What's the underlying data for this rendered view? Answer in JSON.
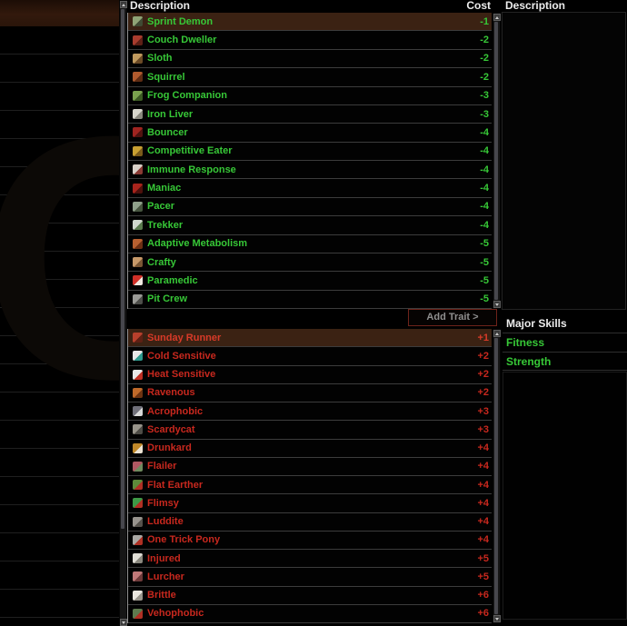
{
  "header": {
    "traits_column_title": "Description",
    "cost_column_title": "Cost",
    "description_panel_title": "Description"
  },
  "add_trait": {
    "label": "Add Trait >"
  },
  "positive_traits": [
    {
      "name": "Sprint Demon",
      "cost": "-1",
      "selected": true,
      "icon": "sprint-demon",
      "icon_colors": [
        "#8fa476",
        "#3f4a33"
      ]
    },
    {
      "name": "Couch Dweller",
      "cost": "-2",
      "selected": false,
      "icon": "couch-dweller",
      "icon_colors": [
        "#a83c2e",
        "#5e1f16"
      ]
    },
    {
      "name": "Sloth",
      "cost": "-2",
      "selected": false,
      "icon": "sloth",
      "icon_colors": [
        "#c09a5e",
        "#6b4a26"
      ]
    },
    {
      "name": "Squirrel",
      "cost": "-2",
      "selected": false,
      "icon": "squirrel",
      "icon_colors": [
        "#b05a2e",
        "#5e2c14"
      ]
    },
    {
      "name": "Frog Companion",
      "cost": "-3",
      "selected": false,
      "icon": "frog-companion",
      "icon_colors": [
        "#7aa24e",
        "#3c5a24"
      ]
    },
    {
      "name": "Iron Liver",
      "cost": "-3",
      "selected": false,
      "icon": "iron-liver",
      "icon_colors": [
        "#d8d6cc",
        "#8a887e"
      ]
    },
    {
      "name": "Bouncer",
      "cost": "-4",
      "selected": false,
      "icon": "bouncer",
      "icon_colors": [
        "#a02420",
        "#521210"
      ]
    },
    {
      "name": "Competitive Eater",
      "cost": "-4",
      "selected": false,
      "icon": "competitive-eater",
      "icon_colors": [
        "#c8a032",
        "#7a5a1a"
      ]
    },
    {
      "name": "Immune Response",
      "cost": "-4",
      "selected": false,
      "icon": "immune-response",
      "icon_colors": [
        "#d8d0c8",
        "#8a3a34"
      ]
    },
    {
      "name": "Maniac",
      "cost": "-4",
      "selected": false,
      "icon": "maniac",
      "icon_colors": [
        "#a8241c",
        "#4e100c"
      ]
    },
    {
      "name": "Pacer",
      "cost": "-4",
      "selected": false,
      "icon": "pacer",
      "icon_colors": [
        "#8fa08a",
        "#46543f"
      ]
    },
    {
      "name": "Trekker",
      "cost": "-4",
      "selected": false,
      "icon": "trekker",
      "icon_colors": [
        "#cfd6cc",
        "#5a7a4e"
      ]
    },
    {
      "name": "Adaptive Metabolism",
      "cost": "-5",
      "selected": false,
      "icon": "adaptive-metabolism",
      "icon_colors": [
        "#b86030",
        "#6e3014"
      ]
    },
    {
      "name": "Crafty",
      "cost": "-5",
      "selected": false,
      "icon": "crafty",
      "icon_colors": [
        "#c89a6a",
        "#7a5634"
      ]
    },
    {
      "name": "Paramedic",
      "cost": "-5",
      "selected": false,
      "icon": "paramedic",
      "icon_colors": [
        "#d03028",
        "#f0e8e0"
      ]
    },
    {
      "name": "Pit Crew",
      "cost": "-5",
      "selected": false,
      "icon": "pit-crew",
      "icon_colors": [
        "#9a9a96",
        "#4e4e4a"
      ]
    }
  ],
  "negative_traits": [
    {
      "name": "Sunday Runner",
      "cost": "+1",
      "selected": true,
      "icon": "sunday-runner",
      "icon_colors": [
        "#b8402c",
        "#5e2014"
      ]
    },
    {
      "name": "Cold Sensitive",
      "cost": "+2",
      "selected": false,
      "icon": "cold-sensitive",
      "icon_colors": [
        "#e8e8e8",
        "#2e9a8e"
      ]
    },
    {
      "name": "Heat Sensitive",
      "cost": "+2",
      "selected": false,
      "icon": "heat-sensitive",
      "icon_colors": [
        "#e8e8e8",
        "#c03024"
      ]
    },
    {
      "name": "Ravenous",
      "cost": "+2",
      "selected": false,
      "icon": "ravenous",
      "icon_colors": [
        "#c06a2a",
        "#6e3412"
      ]
    },
    {
      "name": "Acrophobic",
      "cost": "+3",
      "selected": false,
      "icon": "acrophobic",
      "icon_colors": [
        "#70707a",
        "#d8d8d8"
      ]
    },
    {
      "name": "Scardycat",
      "cost": "+3",
      "selected": false,
      "icon": "scardycat",
      "icon_colors": [
        "#98948a",
        "#4e4c46"
      ]
    },
    {
      "name": "Drunkard",
      "cost": "+4",
      "selected": false,
      "icon": "drunkard",
      "icon_colors": [
        "#c08828",
        "#ece4d4"
      ]
    },
    {
      "name": "Flailer",
      "cost": "+4",
      "selected": false,
      "icon": "flailer",
      "icon_colors": [
        "#b05862",
        "#6e8a5e"
      ]
    },
    {
      "name": "Flat Earther",
      "cost": "+4",
      "selected": false,
      "icon": "flat-earther",
      "icon_colors": [
        "#5e8a3a",
        "#b03024"
      ]
    },
    {
      "name": "Flimsy",
      "cost": "+4",
      "selected": false,
      "icon": "flimsy",
      "icon_colors": [
        "#3e9a46",
        "#b03024"
      ]
    },
    {
      "name": "Luddite",
      "cost": "+4",
      "selected": false,
      "icon": "luddite",
      "icon_colors": [
        "#98948e",
        "#56524c"
      ]
    },
    {
      "name": "One Trick Pony",
      "cost": "+4",
      "selected": false,
      "icon": "one-trick-pony",
      "icon_colors": [
        "#aaa8a4",
        "#b03024"
      ]
    },
    {
      "name": "Injured",
      "cost": "+5",
      "selected": false,
      "icon": "injured",
      "icon_colors": [
        "#e0ded6",
        "#8a887e"
      ]
    },
    {
      "name": "Lurcher",
      "cost": "+5",
      "selected": false,
      "icon": "lurcher",
      "icon_colors": [
        "#c07878",
        "#6e3a3a"
      ]
    },
    {
      "name": "Brittle",
      "cost": "+6",
      "selected": false,
      "icon": "brittle",
      "icon_colors": [
        "#ece8e0",
        "#9a968c"
      ]
    },
    {
      "name": "Vehophobic",
      "cost": "+6",
      "selected": false,
      "icon": "vehophobic",
      "icon_colors": [
        "#5e7a4e",
        "#b03024"
      ]
    }
  ],
  "major_skills": {
    "title": "Major Skills",
    "skills": [
      {
        "name": "Fitness"
      },
      {
        "name": "Strength"
      }
    ]
  },
  "colors": {
    "positive_text": "#37c837",
    "negative_text": "#c8281e",
    "selected_row_bg": "#3b2213",
    "header_text": "#ececec",
    "add_trait_border": "#6e231a",
    "add_trait_text": "#8f8f8f"
  }
}
